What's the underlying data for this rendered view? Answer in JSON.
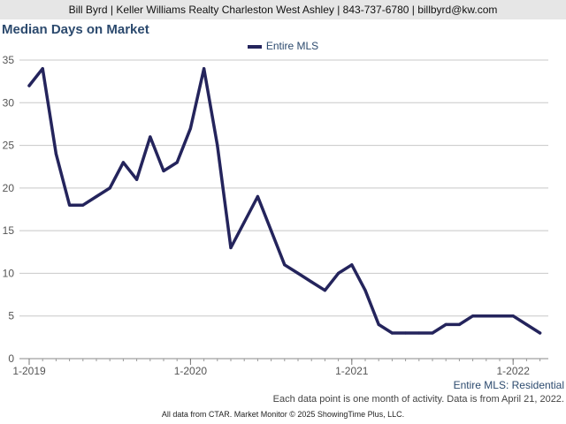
{
  "header": {
    "contact_line": "Bill Byrd | Keller Williams Realty Charleston West Ashley | 843-737-6780 | billbyrd@kw.com"
  },
  "chart_data": {
    "type": "line",
    "title": "Median Days on Market",
    "xlabel": "",
    "ylabel": "",
    "ylim": [
      0,
      35
    ],
    "yticks": [
      0,
      5,
      10,
      15,
      20,
      25,
      30,
      35
    ],
    "x_tick_labels": [
      "1-2019",
      "1-2020",
      "1-2021",
      "1-2022"
    ],
    "x_tick_indices": [
      0,
      12,
      24,
      36
    ],
    "grid": true,
    "legend_position": "top-center",
    "series": [
      {
        "name": "Entire MLS",
        "color": "#24245c",
        "x": [
          "1-2019",
          "2-2019",
          "3-2019",
          "4-2019",
          "5-2019",
          "6-2019",
          "7-2019",
          "8-2019",
          "9-2019",
          "10-2019",
          "11-2019",
          "12-2019",
          "1-2020",
          "2-2020",
          "3-2020",
          "4-2020",
          "5-2020",
          "6-2020",
          "7-2020",
          "8-2020",
          "9-2020",
          "10-2020",
          "11-2020",
          "12-2020",
          "1-2021",
          "2-2021",
          "3-2021",
          "4-2021",
          "5-2021",
          "6-2021",
          "7-2021",
          "8-2021",
          "9-2021",
          "10-2021",
          "11-2021",
          "12-2021",
          "1-2022",
          "2-2022",
          "3-2022"
        ],
        "values": [
          32,
          34,
          24,
          18,
          18,
          19,
          20,
          23,
          21,
          26,
          22,
          23,
          27,
          34,
          25,
          13,
          16,
          19,
          15,
          11,
          10,
          9,
          8,
          10,
          11,
          8,
          4,
          3,
          3,
          3,
          3,
          4,
          4,
          5,
          5,
          5,
          5,
          4,
          3
        ]
      }
    ]
  },
  "captions": {
    "series_caption": "Entire MLS: Residential",
    "note": "Each data point is one month of activity. Data is from April 21, 2022.",
    "footer": "All data from CTAR. Market Monitor © 2025 ShowingTime Plus, LLC."
  }
}
